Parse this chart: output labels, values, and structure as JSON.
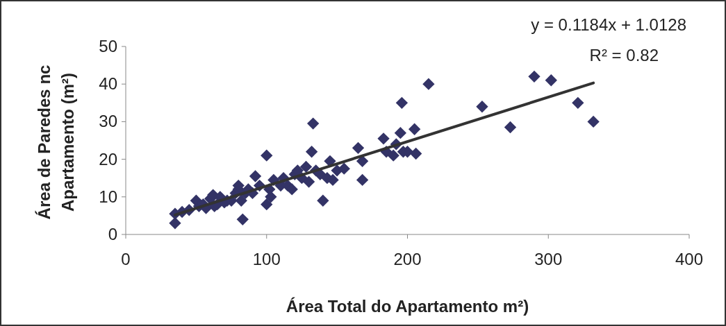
{
  "chart_data": {
    "type": "scatter",
    "xlabel": "Área Total do Apartamento m²)",
    "ylabel": "Área de Paredes nc Apartamento (m²)",
    "annotations": [
      "y = 0.1184x + 1.0128",
      "R² = 0.82"
    ],
    "xlim": [
      0,
      400
    ],
    "xticks": [
      0,
      100,
      200,
      300,
      400
    ],
    "ylim": [
      0,
      50
    ],
    "yticks": [
      0,
      10,
      20,
      30,
      40,
      50
    ],
    "grid": false,
    "line_style": "solid",
    "series": [
      {
        "marker": "diamond",
        "color": "#333366",
        "x": [
          35,
          35,
          40,
          45,
          50,
          52,
          55,
          57,
          60,
          62,
          63,
          65,
          67,
          70,
          72,
          75,
          78,
          80,
          80,
          82,
          83,
          85,
          87,
          90,
          92,
          95,
          100,
          100,
          102,
          103,
          105,
          110,
          112,
          115,
          118,
          120,
          122,
          125,
          128,
          130,
          132,
          133,
          135,
          138,
          140,
          143,
          145,
          147,
          150,
          155,
          165,
          168,
          168,
          183,
          185,
          190,
          192,
          195,
          196,
          197,
          200,
          205,
          206,
          215,
          253,
          273,
          290,
          302,
          321,
          332
        ],
        "values": [
          5.5,
          3,
          6,
          6.5,
          9,
          7.5,
          8,
          7,
          9.5,
          10.5,
          7.5,
          8,
          10,
          8.5,
          9,
          9,
          11,
          12,
          13,
          9,
          4,
          11,
          12,
          11,
          15.5,
          13,
          8,
          21,
          12,
          10,
          14.5,
          13,
          15,
          13,
          12,
          16,
          17,
          15,
          18,
          14,
          22,
          29.5,
          17,
          16,
          9,
          15,
          19.5,
          14.5,
          17,
          17.5,
          23,
          19.5,
          14.5,
          25.5,
          22,
          21,
          24,
          27,
          35,
          22,
          22,
          28,
          21.5,
          40,
          34,
          28.5,
          42,
          41,
          35,
          30
        ]
      },
      {
        "type": "line",
        "marker": "none",
        "color": "#333333",
        "x": [
          35,
          332
        ],
        "values": [
          5.2,
          40.3
        ]
      }
    ]
  }
}
